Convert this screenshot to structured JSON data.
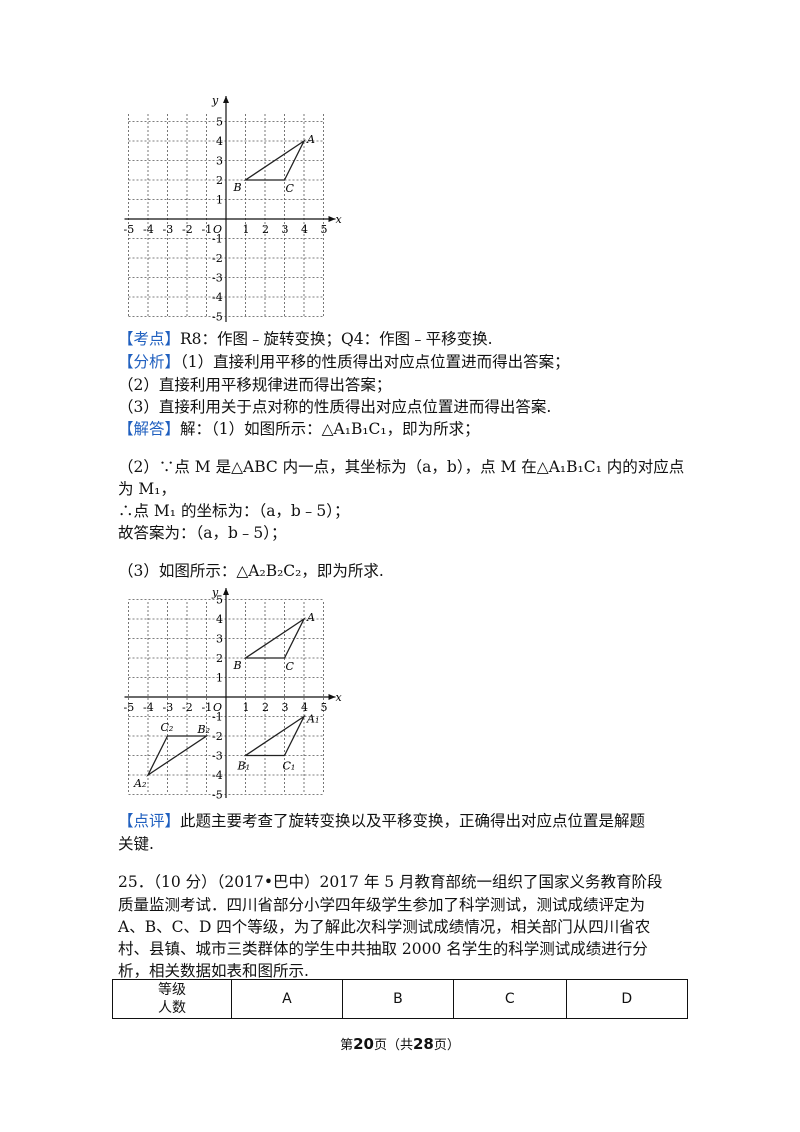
{
  "graph1": {
    "x_label": "x",
    "y_label": "y",
    "origin": "O",
    "x_ticks": [
      "-5",
      "-4",
      "-3",
      "-2",
      "-1",
      "1",
      "2",
      "3",
      "4",
      "5"
    ],
    "y_ticks": [
      "5",
      "4",
      "3",
      "2",
      "1",
      "-1",
      "-2",
      "-3",
      "-4",
      "-5"
    ],
    "points": {
      "A": [
        4,
        4
      ],
      "B": [
        1,
        2
      ],
      "C": [
        3,
        2
      ]
    },
    "labels": {
      "A": "A",
      "B": "B",
      "C": "C"
    }
  },
  "analysis": {
    "kaodian_tag": "【考点】",
    "kaodian_text": "R8：作图﹣旋转变换；Q4：作图﹣平移变换.",
    "fenxi_tag": "【分析】",
    "fenxi_1": "（1）直接利用平移的性质得出对应点位置进而得出答案；",
    "fenxi_2": "（2）直接利用平移规律进而得出答案；",
    "fenxi_3": "（3）直接利用关于点对称的性质得出对应点位置进而得出答案.",
    "jieda_tag": "【解答】",
    "jieda_1": "解：（1）如图所示：△A₁B₁C₁，即为所求；",
    "p2_line1": "（2）∵点 M 是△ABC 内一点，其坐标为（a，b），点 M 在△A₁B₁C₁ 内的对应点",
    "p2_line2": "为 M₁，",
    "p2_line3": "∴点 M₁ 的坐标为：（a，b﹣5）；",
    "p2_line4": "故答案为：（a，b﹣5）；",
    "p3_line": "（3）如图所示：△A₂B₂C₂，即为所求."
  },
  "graph2": {
    "x_label": "x",
    "y_label": "y",
    "origin": "O",
    "x_ticks": [
      "-5",
      "-4",
      "-3",
      "-2",
      "-1",
      "1",
      "2",
      "3",
      "4",
      "5"
    ],
    "y_ticks": [
      "5",
      "4",
      "3",
      "2",
      "1",
      "-1",
      "-2",
      "-3",
      "-4",
      "-5"
    ],
    "tri_ABC": {
      "A": [
        4,
        4
      ],
      "B": [
        1,
        2
      ],
      "C": [
        3,
        2
      ]
    },
    "tri_A1B1C1": {
      "A": [
        4,
        -1
      ],
      "B": [
        1,
        -3
      ],
      "C": [
        3,
        -3
      ]
    },
    "tri_A2B2C2": {
      "A": [
        -4,
        -4
      ],
      "B": [
        -1,
        -2
      ],
      "C": [
        -3,
        -2
      ]
    },
    "labels": {
      "A": "A",
      "B": "B",
      "C": "C",
      "A1": "A₁",
      "B1": "B₁",
      "C1": "C₁",
      "A2": "A₂",
      "B2": "B₂",
      "C2": "C₂"
    }
  },
  "review": {
    "tag": "【点评】",
    "line1": "此题主要考查了旋转变换以及平移变换，正确得出对应点位置是解题",
    "line2": "关键."
  },
  "q25": {
    "line1": "25．（10 分）（2017•巴中）2017 年 5 月教育部统一组织了国家义务教育阶段",
    "line2": "质量监测考试．四川省部分小学四年级学生参加了科学测试，测试成绩评定为",
    "line3": "A、B、C、D 四个等级，为了解此次科学测试成绩情况，相关部门从四川省农",
    "line4": "村、县镇、城市三类群体的学生中共抽取 2000 名学生的科学测试成绩进行分",
    "line5": "析，相关数据如表和图所示."
  },
  "table": {
    "header_top": "等级",
    "header_bottom": "人数",
    "columns": [
      "A",
      "B",
      "C",
      "D"
    ]
  },
  "footer": {
    "prefix": "第",
    "page": "20",
    "middle": "页（共",
    "total": "28",
    "suffix": "页）"
  }
}
